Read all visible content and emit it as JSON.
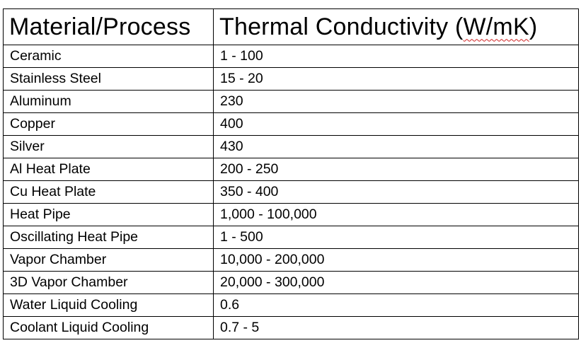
{
  "table": {
    "headers": [
      "Material/Process",
      "Thermal Conductivity (W/mK)"
    ],
    "header_parts": {
      "col2_prefix": "Thermal Conductivity (",
      "col2_unit": "W/mK",
      "col2_suffix": ")"
    },
    "rows": [
      {
        "material": "Ceramic",
        "conductivity": "1 - 100"
      },
      {
        "material": "Stainless Steel",
        "conductivity": "15 - 20"
      },
      {
        "material": "Aluminum",
        "conductivity": "230"
      },
      {
        "material": "Copper",
        "conductivity": "400"
      },
      {
        "material": "Silver",
        "conductivity": "430"
      },
      {
        "material": "Al Heat Plate",
        "conductivity": "200 - 250"
      },
      {
        "material": "Cu Heat Plate",
        "conductivity": "350 - 400"
      },
      {
        "material": "Heat Pipe",
        "conductivity": "1,000 - 100,000"
      },
      {
        "material": "Oscillating Heat Pipe",
        "conductivity": "1 - 500"
      },
      {
        "material": "Vapor Chamber",
        "conductivity": "10,000 - 200,000"
      },
      {
        "material": "3D Vapor Chamber",
        "conductivity": "20,000 - 300,000"
      },
      {
        "material": "Water Liquid Cooling",
        "conductivity": "0.6"
      },
      {
        "material": "Coolant Liquid Cooling",
        "conductivity": "0.7 - 5"
      }
    ]
  },
  "colors": {
    "border": "#000000",
    "text": "#000000",
    "background": "#ffffff",
    "spellcheck_underline": "#d02020"
  }
}
